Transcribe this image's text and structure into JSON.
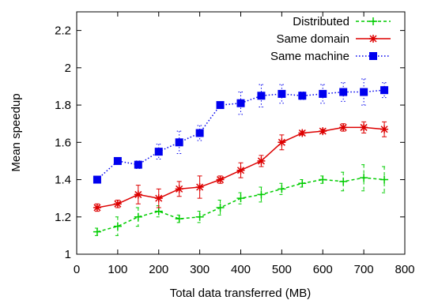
{
  "chart_data": {
    "type": "line",
    "title": "",
    "xlabel": "Total data transferred (MB)",
    "ylabel": "Mean speedup",
    "xlim": [
      0,
      800
    ],
    "ylim": [
      1,
      2.3
    ],
    "xticks": [
      0,
      100,
      200,
      300,
      400,
      500,
      600,
      700,
      800
    ],
    "yticks": [
      1,
      1.2,
      1.4,
      1.6,
      1.8,
      2,
      2.2
    ],
    "grid": false,
    "legend_position": "top-right",
    "x": [
      50,
      100,
      150,
      200,
      250,
      300,
      350,
      400,
      450,
      500,
      550,
      600,
      650,
      700,
      750
    ],
    "series": [
      {
        "name": "Distributed",
        "color": "#00cc00",
        "marker": "plus",
        "line_style": "dashed",
        "values": [
          1.12,
          1.15,
          1.2,
          1.23,
          1.19,
          1.2,
          1.25,
          1.3,
          1.32,
          1.35,
          1.38,
          1.4,
          1.39,
          1.41,
          1.4
        ],
        "errors": [
          0.02,
          0.05,
          0.05,
          0.03,
          0.02,
          0.03,
          0.04,
          0.03,
          0.04,
          0.03,
          0.02,
          0.02,
          0.05,
          0.07,
          0.07
        ]
      },
      {
        "name": "Same domain",
        "color": "#dd0000",
        "marker": "star",
        "line_style": "solid",
        "values": [
          1.25,
          1.27,
          1.32,
          1.3,
          1.35,
          1.36,
          1.4,
          1.45,
          1.5,
          1.6,
          1.65,
          1.66,
          1.68,
          1.68,
          1.67
        ],
        "errors": [
          0.02,
          0.02,
          0.05,
          0.05,
          0.04,
          0.06,
          0.02,
          0.04,
          0.03,
          0.04,
          0.01,
          0.01,
          0.02,
          0.03,
          0.04
        ]
      },
      {
        "name": "Same machine",
        "color": "#0000ee",
        "marker": "square",
        "line_style": "dotted",
        "values": [
          1.4,
          1.5,
          1.48,
          1.55,
          1.6,
          1.65,
          1.8,
          1.81,
          1.85,
          1.86,
          1.85,
          1.86,
          1.87,
          1.87,
          1.88
        ],
        "errors": [
          0.01,
          0.01,
          0.02,
          0.04,
          0.06,
          0.04,
          0.01,
          0.06,
          0.06,
          0.05,
          0.02,
          0.05,
          0.05,
          0.07,
          0.04
        ]
      }
    ]
  }
}
